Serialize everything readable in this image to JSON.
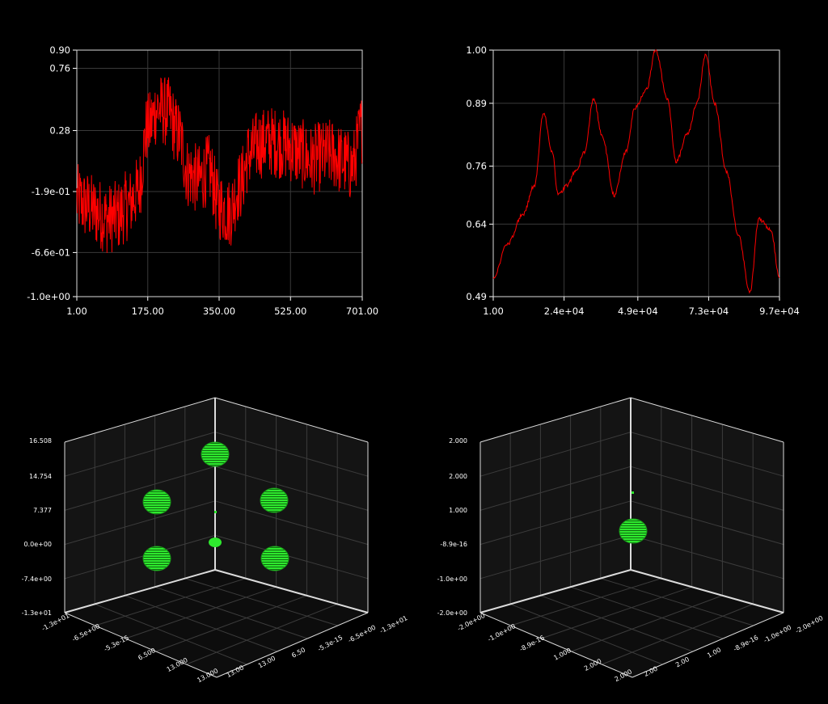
{
  "chart_data": [
    {
      "type": "line",
      "title": "",
      "xlabel": "",
      "ylabel": "",
      "xlim": [
        1,
        701
      ],
      "ylim": [
        -1.0,
        0.9
      ],
      "grid": true,
      "line_color": "#ff0000",
      "x_ticks": [
        "1.00",
        "175.00",
        "350.00",
        "525.00",
        "701.00"
      ],
      "y_ticks": [
        "0.90",
        "0.76",
        "0.28",
        "-1.9e-01",
        "-6.6e-01",
        "-1.0e+00"
      ],
      "series": [
        {
          "x": [
            1,
            25,
            50,
            75,
            100,
            125,
            150,
            175,
            200,
            225,
            250,
            275,
            300,
            325,
            350,
            375,
            400,
            425,
            450,
            475,
            500,
            525,
            550,
            575,
            600,
            625,
            650,
            675,
            701
          ],
          "values": [
            -0.25,
            -0.3,
            -0.35,
            -0.4,
            -0.38,
            -0.3,
            -0.2,
            0.3,
            0.45,
            0.42,
            0.25,
            -0.05,
            -0.1,
            -0.02,
            -0.3,
            -0.35,
            -0.15,
            0.1,
            0.18,
            0.2,
            0.18,
            0.15,
            0.1,
            0.05,
            0.08,
            0.1,
            0.05,
            0.0,
            0.3
          ]
        }
      ]
    },
    {
      "type": "line",
      "title": "",
      "xlabel": "",
      "ylabel": "",
      "xlim": [
        1,
        97000
      ],
      "ylim": [
        0.49,
        1.0
      ],
      "grid": true,
      "line_color": "#ff0000",
      "x_ticks": [
        "1.00",
        "2.4e+04",
        "4.9e+04",
        "7.3e+04",
        "9.7e+04"
      ],
      "y_ticks": [
        "1.00",
        "0.89",
        "0.76",
        "0.64",
        "0.49"
      ],
      "series": [
        {
          "x": [
            1,
            5000,
            10000,
            14000,
            17000,
            20000,
            22000,
            25000,
            28000,
            31000,
            34000,
            37000,
            41000,
            45000,
            48000,
            52000,
            55000,
            59000,
            62000,
            66000,
            69000,
            72000,
            75000,
            79000,
            83000,
            87000,
            90000,
            94000,
            97000
          ],
          "values": [
            0.53,
            0.6,
            0.66,
            0.72,
            0.87,
            0.79,
            0.7,
            0.72,
            0.75,
            0.79,
            0.9,
            0.82,
            0.7,
            0.79,
            0.88,
            0.92,
            1.0,
            0.9,
            0.77,
            0.83,
            0.89,
            0.99,
            0.89,
            0.75,
            0.62,
            0.5,
            0.65,
            0.63,
            0.53
          ]
        }
      ]
    },
    {
      "type": "scatter",
      "title": "",
      "z_ticks": [
        "16.508",
        "14.754",
        "7.377",
        "0.0e+00",
        "-7.4e+00",
        "-1.3e+01"
      ],
      "x_ticks": [
        "-1.3e+01",
        "-6.5e+00",
        "-5.3e-15",
        "6.500",
        "13.000",
        "13.000"
      ],
      "y_ticks": [
        "-1.3e+01",
        "-6.5e+00",
        "-5.3e-15",
        "6.50",
        "13.00",
        "13.00"
      ],
      "point_color": "#22ee22",
      "points": [
        {
          "label": "top",
          "size": "large"
        },
        {
          "label": "left",
          "size": "large"
        },
        {
          "label": "right",
          "size": "large"
        },
        {
          "label": "bottom-left",
          "size": "large"
        },
        {
          "label": "bottom-right",
          "size": "large"
        },
        {
          "label": "center",
          "size": "small"
        },
        {
          "label": "center-above",
          "size": "tiny"
        }
      ]
    },
    {
      "type": "scatter",
      "title": "",
      "z_ticks": [
        "2.000",
        "2.000",
        "1.000",
        "-8.9e-16",
        "-1.0e+00",
        "-2.0e+00"
      ],
      "x_ticks": [
        "-2.0e+00",
        "-1.0e+00",
        "-8.9e-16",
        "1.000",
        "2.000",
        "2.000"
      ],
      "y_ticks": [
        "-2.0e+00",
        "-1.0e+00",
        "-8.9e-16",
        "1.00",
        "2.00",
        "2.00"
      ],
      "point_color": "#22ee22",
      "points": [
        {
          "label": "center",
          "size": "large"
        },
        {
          "label": "center-above",
          "size": "tiny"
        }
      ]
    }
  ]
}
